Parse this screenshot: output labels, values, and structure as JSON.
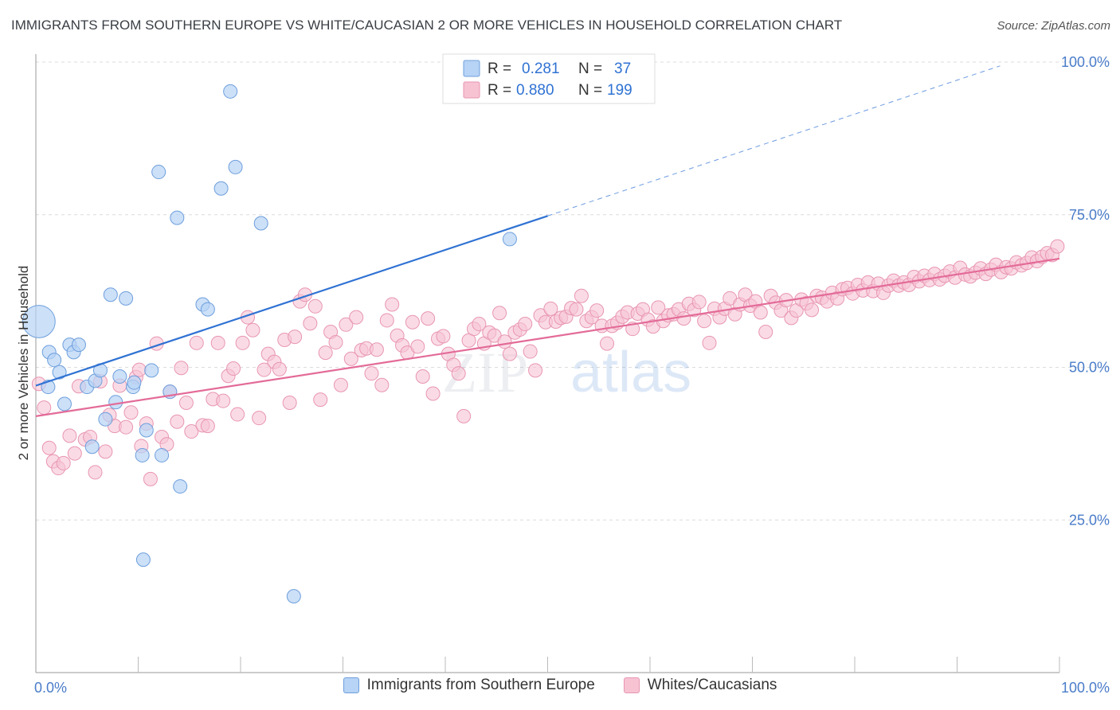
{
  "header": {
    "title": "IMMIGRANTS FROM SOUTHERN EUROPE VS WHITE/CAUCASIAN 2 OR MORE VEHICLES IN HOUSEHOLD CORRELATION CHART",
    "source": "Source: ZipAtlas.com"
  },
  "watermark": {
    "zip": "ZIP",
    "atlas": "atlas"
  },
  "colors": {
    "blue_fill": "#b7d3f5",
    "blue_stroke": "#6e9fdc",
    "blue_line": "#2f72d3",
    "pink_fill": "#f7c3d3",
    "pink_stroke": "#e896b2",
    "pink_line": "#e36b98",
    "axis_label": "#4a7cc9"
  },
  "chart_data": {
    "type": "scatter",
    "ylabel": "2 or more Vehicles in Household",
    "x_tick_labels": [
      "0.0%",
      "100.0%"
    ],
    "y_tick_labels": [
      "100.0%",
      "75.0%",
      "50.0%",
      "25.0%"
    ],
    "xlim": [
      0,
      100
    ],
    "ylim": [
      0,
      100
    ],
    "grid": "horizontal dashed",
    "legend_position": "top-center",
    "legend": [
      {
        "r_label": "R =",
        "r": "0.281",
        "n_label": "N =",
        "n": "37"
      },
      {
        "r_label": "R =",
        "r": "0.880",
        "n_label": "N =",
        "n": "199"
      }
    ],
    "series": [
      {
        "name": "Immigrants from Southern Europe",
        "trend": {
          "x0": 0,
          "y0": 47.0,
          "x1": 50,
          "y1": 74.8,
          "dashed_to": 100
        },
        "points": [
          [
            0.3,
            57.5,
            2.4
          ],
          [
            1.2,
            46.8,
            1
          ],
          [
            1.3,
            52.5,
            1
          ],
          [
            1.8,
            51.2,
            1
          ],
          [
            2.3,
            49.2,
            1
          ],
          [
            2.8,
            44.0,
            1
          ],
          [
            3.3,
            53.7,
            1
          ],
          [
            3.7,
            52.5,
            1
          ],
          [
            4.2,
            53.7,
            1
          ],
          [
            5.0,
            46.8,
            1
          ],
          [
            5.5,
            37.0,
            1
          ],
          [
            5.8,
            47.8,
            1
          ],
          [
            6.3,
            49.5,
            1
          ],
          [
            6.8,
            41.5,
            1
          ],
          [
            7.3,
            61.9,
            1
          ],
          [
            7.8,
            44.3,
            1
          ],
          [
            8.2,
            48.5,
            1
          ],
          [
            8.8,
            61.3,
            1
          ],
          [
            9.5,
            46.8,
            1
          ],
          [
            9.6,
            47.5,
            1
          ],
          [
            10.4,
            35.6,
            1
          ],
          [
            10.8,
            39.7,
            1
          ],
          [
            11.3,
            49.5,
            1
          ],
          [
            12.0,
            82.0,
            1
          ],
          [
            12.3,
            35.6,
            1
          ],
          [
            13.1,
            46.0,
            1
          ],
          [
            13.8,
            74.5,
            1
          ],
          [
            14.1,
            30.5,
            1
          ],
          [
            16.3,
            60.3,
            1
          ],
          [
            16.8,
            59.5,
            1
          ],
          [
            18.1,
            79.3,
            1
          ],
          [
            19.0,
            95.2,
            1
          ],
          [
            19.5,
            82.8,
            1
          ],
          [
            22.0,
            73.6,
            1
          ],
          [
            10.5,
            18.5,
            1
          ],
          [
            25.2,
            12.5,
            1
          ],
          [
            46.3,
            71.0,
            1
          ]
        ]
      },
      {
        "name": "Whites/Caucasians",
        "trend": {
          "x0": 0,
          "y0": 42.0,
          "x1": 100,
          "y1": 67.8
        },
        "points": [
          [
            0.3,
            47.3
          ],
          [
            0.8,
            43.4
          ],
          [
            1.3,
            36.8
          ],
          [
            1.7,
            34.6
          ],
          [
            2.2,
            33.5
          ],
          [
            2.7,
            34.3
          ],
          [
            3.3,
            38.8
          ],
          [
            3.8,
            35.9
          ],
          [
            4.2,
            46.9
          ],
          [
            4.8,
            38.2
          ],
          [
            5.3,
            38.6
          ],
          [
            5.8,
            32.8
          ],
          [
            6.3,
            47.7
          ],
          [
            6.8,
            36.2
          ],
          [
            7.2,
            42.2
          ],
          [
            7.7,
            40.4
          ],
          [
            8.2,
            47.0
          ],
          [
            8.8,
            40.2
          ],
          [
            9.3,
            42.6
          ],
          [
            9.8,
            48.4
          ],
          [
            10.1,
            49.6
          ],
          [
            10.3,
            37.1
          ],
          [
            10.8,
            40.8
          ],
          [
            11.2,
            31.7
          ],
          [
            11.8,
            53.9
          ],
          [
            12.3,
            38.6
          ],
          [
            12.8,
            37.4
          ],
          [
            13.1,
            46.0
          ],
          [
            13.8,
            41.1
          ],
          [
            14.2,
            49.9
          ],
          [
            14.7,
            44.2
          ],
          [
            15.2,
            39.5
          ],
          [
            15.7,
            54.0
          ],
          [
            16.3,
            40.5
          ],
          [
            16.8,
            40.4
          ],
          [
            17.3,
            44.8
          ],
          [
            17.8,
            54.0
          ],
          [
            18.3,
            44.5
          ],
          [
            18.8,
            48.6
          ],
          [
            19.3,
            49.8
          ],
          [
            19.7,
            42.3
          ],
          [
            20.2,
            54.0
          ],
          [
            20.7,
            58.2
          ],
          [
            21.2,
            56.1
          ],
          [
            21.8,
            41.7
          ],
          [
            22.3,
            49.6
          ],
          [
            22.7,
            52.2
          ],
          [
            23.3,
            50.9
          ],
          [
            23.8,
            49.7
          ],
          [
            24.3,
            54.5
          ],
          [
            24.8,
            44.2
          ],
          [
            25.3,
            55.0
          ],
          [
            25.8,
            60.8
          ],
          [
            26.3,
            61.9
          ],
          [
            26.8,
            57.2
          ],
          [
            27.3,
            60.0
          ],
          [
            27.8,
            44.7
          ],
          [
            28.3,
            52.4
          ],
          [
            28.8,
            55.8
          ],
          [
            29.3,
            54.1
          ],
          [
            29.8,
            47.1
          ],
          [
            30.3,
            57.0
          ],
          [
            30.8,
            51.4
          ],
          [
            31.3,
            58.2
          ],
          [
            31.8,
            52.8
          ],
          [
            32.3,
            53.1
          ],
          [
            32.8,
            49.0
          ],
          [
            33.3,
            52.9
          ],
          [
            33.8,
            47.1
          ],
          [
            34.3,
            57.7
          ],
          [
            34.8,
            60.3
          ],
          [
            35.3,
            55.2
          ],
          [
            35.8,
            53.6
          ],
          [
            36.3,
            52.4
          ],
          [
            36.8,
            57.4
          ],
          [
            37.3,
            53.4
          ],
          [
            37.8,
            48.5
          ],
          [
            38.3,
            58.0
          ],
          [
            38.8,
            45.7
          ],
          [
            39.3,
            54.7
          ],
          [
            39.8,
            55.1
          ],
          [
            40.3,
            52.2
          ],
          [
            40.8,
            50.4
          ],
          [
            41.3,
            49.0
          ],
          [
            41.8,
            42.0
          ],
          [
            42.3,
            54.4
          ],
          [
            42.8,
            56.3
          ],
          [
            43.3,
            57.1
          ],
          [
            43.8,
            53.9
          ],
          [
            44.3,
            55.7
          ],
          [
            44.8,
            55.2
          ],
          [
            45.3,
            58.9
          ],
          [
            45.8,
            54.2
          ],
          [
            46.3,
            52.2
          ],
          [
            46.8,
            55.7
          ],
          [
            47.3,
            56.2
          ],
          [
            47.8,
            57.1
          ],
          [
            48.3,
            52.6
          ],
          [
            48.8,
            49.5
          ],
          [
            49.3,
            58.5
          ],
          [
            49.8,
            57.4
          ],
          [
            50.3,
            59.6
          ],
          [
            50.8,
            57.5
          ],
          [
            51.3,
            58.1
          ],
          [
            51.8,
            58.3
          ],
          [
            52.3,
            59.7
          ],
          [
            52.8,
            59.5
          ],
          [
            53.3,
            61.7
          ],
          [
            53.8,
            57.6
          ],
          [
            54.3,
            58.2
          ],
          [
            54.8,
            59.3
          ],
          [
            55.3,
            56.8
          ],
          [
            55.8,
            53.9
          ],
          [
            56.3,
            56.8
          ],
          [
            56.8,
            57.3
          ],
          [
            57.3,
            58.3
          ],
          [
            57.8,
            59.0
          ],
          [
            58.3,
            56.3
          ],
          [
            58.8,
            58.8
          ],
          [
            59.3,
            59.5
          ],
          [
            59.8,
            57.8
          ],
          [
            60.3,
            56.7
          ],
          [
            60.8,
            59.8
          ],
          [
            61.3,
            57.6
          ],
          [
            61.8,
            58.5
          ],
          [
            62.3,
            58.7
          ],
          [
            62.8,
            59.5
          ],
          [
            63.3,
            58.0
          ],
          [
            63.8,
            60.4
          ],
          [
            64.3,
            59.4
          ],
          [
            64.8,
            60.7
          ],
          [
            65.3,
            57.6
          ],
          [
            65.8,
            54.0
          ],
          [
            66.3,
            59.6
          ],
          [
            66.8,
            58.2
          ],
          [
            67.3,
            59.6
          ],
          [
            67.8,
            61.3
          ],
          [
            68.3,
            58.7
          ],
          [
            68.8,
            60.3
          ],
          [
            69.3,
            61.9
          ],
          [
            69.8,
            60.1
          ],
          [
            70.3,
            60.8
          ],
          [
            70.8,
            59.0
          ],
          [
            71.3,
            55.8
          ],
          [
            71.8,
            61.7
          ],
          [
            72.3,
            60.6
          ],
          [
            72.8,
            59.3
          ],
          [
            73.3,
            61.0
          ],
          [
            73.8,
            58.1
          ],
          [
            74.3,
            59.3
          ],
          [
            74.8,
            61.1
          ],
          [
            75.3,
            60.5
          ],
          [
            75.8,
            59.4
          ],
          [
            76.3,
            61.7
          ],
          [
            76.8,
            61.4
          ],
          [
            77.3,
            60.8
          ],
          [
            77.8,
            62.2
          ],
          [
            78.3,
            61.3
          ],
          [
            78.8,
            62.8
          ],
          [
            79.3,
            63.0
          ],
          [
            79.8,
            62.1
          ],
          [
            80.3,
            63.5
          ],
          [
            80.8,
            62.6
          ],
          [
            81.3,
            63.9
          ],
          [
            81.8,
            62.5
          ],
          [
            82.3,
            63.7
          ],
          [
            82.8,
            62.2
          ],
          [
            83.3,
            63.4
          ],
          [
            83.8,
            64.2
          ],
          [
            84.3,
            63.4
          ],
          [
            84.8,
            63.9
          ],
          [
            85.3,
            63.5
          ],
          [
            85.8,
            64.8
          ],
          [
            86.3,
            64.1
          ],
          [
            86.8,
            65.0
          ],
          [
            87.3,
            64.3
          ],
          [
            87.8,
            65.3
          ],
          [
            88.3,
            64.4
          ],
          [
            88.8,
            65.0
          ],
          [
            89.3,
            65.7
          ],
          [
            89.8,
            64.7
          ],
          [
            90.3,
            66.3
          ],
          [
            90.8,
            65.2
          ],
          [
            91.3,
            64.9
          ],
          [
            91.8,
            65.5
          ],
          [
            92.3,
            66.2
          ],
          [
            92.8,
            65.3
          ],
          [
            93.3,
            66.0
          ],
          [
            93.8,
            66.8
          ],
          [
            94.3,
            65.6
          ],
          [
            94.8,
            66.4
          ],
          [
            95.3,
            66.2
          ],
          [
            95.8,
            67.2
          ],
          [
            96.3,
            66.7
          ],
          [
            96.8,
            67.1
          ],
          [
            97.3,
            68.0
          ],
          [
            97.8,
            67.4
          ],
          [
            98.3,
            68.1
          ],
          [
            98.8,
            68.7
          ],
          [
            99.3,
            68.4
          ],
          [
            99.8,
            69.8
          ]
        ]
      }
    ]
  }
}
